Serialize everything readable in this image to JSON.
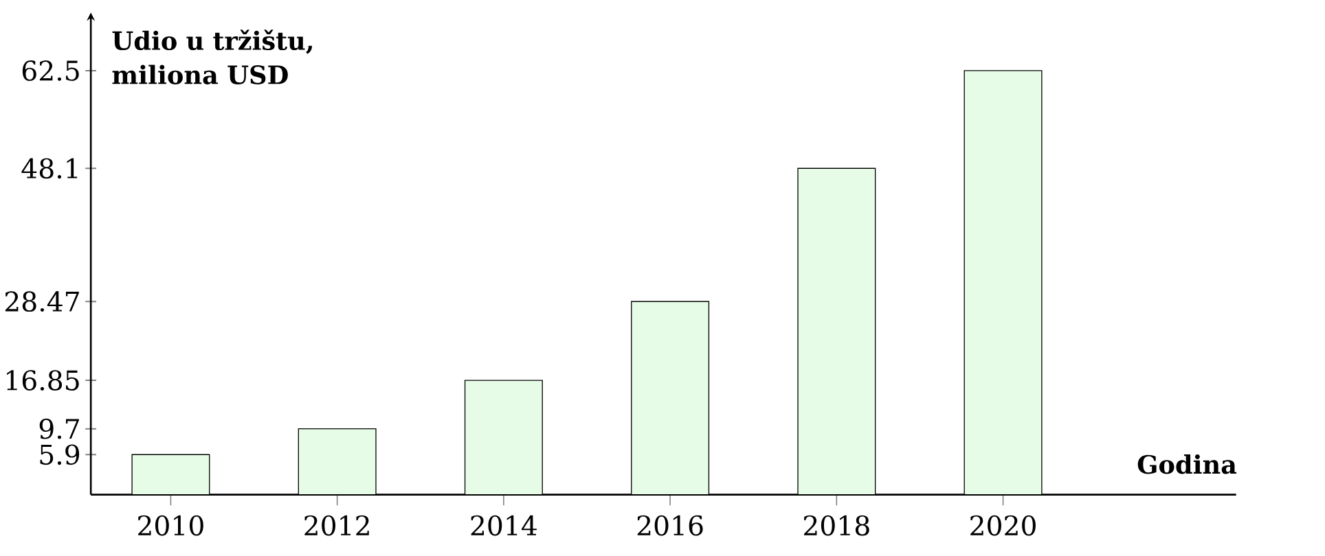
{
  "chart_data": {
    "type": "bar",
    "xlabel": "Godina",
    "ylabel": "Udio u tržištu, miliona USD",
    "categories": [
      "2010",
      "2012",
      "2014",
      "2016",
      "2018",
      "2020"
    ],
    "values": [
      5.9,
      9.7,
      16.85,
      28.47,
      48.1,
      62.5
    ],
    "color": "#e6fce6",
    "ylim": [
      0,
      70
    ],
    "yticks": [
      5.9,
      9.7,
      16.85,
      28.47,
      48.1,
      62.5
    ]
  }
}
